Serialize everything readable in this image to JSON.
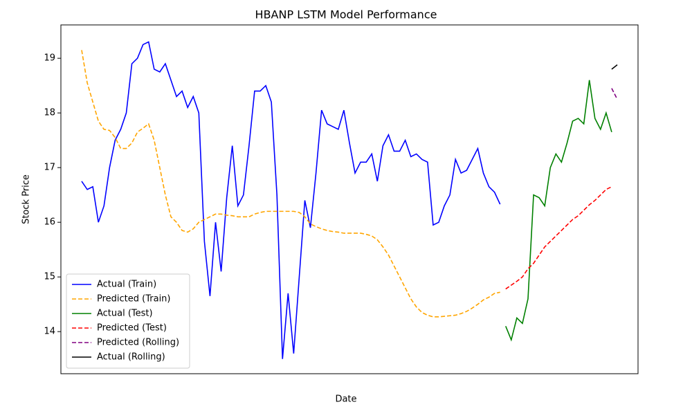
{
  "chart_data": {
    "type": "line",
    "title": "HBANP LSTM Model Performance",
    "x_label": "Date",
    "y_label": "Stock Price",
    "categories": [
      null,
      null,
      null,
      null,
      null,
      null,
      null,
      null,
      null,
      null,
      null,
      null,
      null,
      null,
      null,
      null,
      null,
      null,
      null,
      null,
      null,
      null,
      null,
      null,
      null,
      null,
      null,
      null,
      null,
      null,
      null,
      null,
      null,
      null,
      null,
      null,
      null,
      null,
      null,
      null,
      null,
      null,
      null,
      null,
      null,
      null,
      null,
      null,
      null,
      null,
      null,
      null,
      null,
      null,
      null,
      null,
      null,
      null,
      null,
      null,
      null,
      null,
      null,
      null,
      null,
      null,
      null,
      null,
      null,
      null,
      null,
      null,
      null,
      null,
      null,
      null,
      null,
      null,
      null,
      null,
      null,
      null,
      null,
      null,
      null,
      null,
      null,
      null,
      null,
      null,
      null,
      null,
      null,
      null,
      null,
      null,
      null
    ],
    "series": [
      {
        "name": "Actual (Train)",
        "color": "#0000ff",
        "linestyle": "solid",
        "values": [
          16.75,
          16.6,
          16.65,
          16.0,
          16.3,
          17.0,
          17.5,
          17.7,
          18.0,
          18.9,
          19.0,
          19.25,
          19.3,
          18.8,
          18.75,
          18.9,
          18.6,
          18.3,
          18.4,
          18.1,
          18.3,
          18.0,
          15.65,
          14.65,
          16.0,
          15.1,
          16.45,
          17.4,
          16.3,
          16.5,
          17.4,
          18.4,
          18.4,
          18.5,
          18.2,
          16.5,
          13.5,
          14.7,
          13.6,
          15.0,
          16.4,
          15.9,
          16.9,
          18.05,
          17.8,
          17.75,
          17.7,
          18.05,
          17.45,
          16.9,
          17.1,
          17.1,
          17.25,
          16.75,
          17.4,
          17.6,
          17.3,
          17.3,
          17.5,
          17.2,
          17.25,
          17.15,
          17.1,
          15.95,
          16.0,
          16.3,
          16.5,
          17.15,
          16.9,
          16.95,
          17.15,
          17.35,
          16.9,
          16.65,
          16.55,
          16.33,
          null,
          null,
          null,
          null,
          null,
          null,
          null,
          null,
          null,
          null,
          null,
          null,
          null,
          null,
          null,
          null,
          null,
          null,
          null,
          null,
          null
        ]
      },
      {
        "name": "Predicted (Train)",
        "color": "#ffa500",
        "linestyle": "dashed",
        "values": [
          19.15,
          18.55,
          18.2,
          17.85,
          17.7,
          17.68,
          17.55,
          17.35,
          17.35,
          17.45,
          17.65,
          17.72,
          17.8,
          17.5,
          17.0,
          16.5,
          16.1,
          16.0,
          15.85,
          15.82,
          15.88,
          16.0,
          16.05,
          16.1,
          16.15,
          16.15,
          16.13,
          16.12,
          16.1,
          16.1,
          16.1,
          16.15,
          16.18,
          16.2,
          16.2,
          16.2,
          16.2,
          16.2,
          16.2,
          16.18,
          16.1,
          15.97,
          15.92,
          15.88,
          15.85,
          15.83,
          15.82,
          15.8,
          15.8,
          15.8,
          15.8,
          15.78,
          15.75,
          15.68,
          15.55,
          15.4,
          15.2,
          15.0,
          14.8,
          14.6,
          14.45,
          14.35,
          14.3,
          14.27,
          14.27,
          14.28,
          14.29,
          14.3,
          14.33,
          14.37,
          14.43,
          14.5,
          14.58,
          14.63,
          14.7,
          14.72,
          null,
          null,
          null,
          null,
          null,
          null,
          null,
          null,
          null,
          null,
          null,
          null,
          null,
          null,
          null,
          null,
          null,
          null,
          null,
          null,
          null
        ]
      },
      {
        "name": "Actual (Test)",
        "color": "#008000",
        "linestyle": "solid",
        "values": [
          null,
          null,
          null,
          null,
          null,
          null,
          null,
          null,
          null,
          null,
          null,
          null,
          null,
          null,
          null,
          null,
          null,
          null,
          null,
          null,
          null,
          null,
          null,
          null,
          null,
          null,
          null,
          null,
          null,
          null,
          null,
          null,
          null,
          null,
          null,
          null,
          null,
          null,
          null,
          null,
          null,
          null,
          null,
          null,
          null,
          null,
          null,
          null,
          null,
          null,
          null,
          null,
          null,
          null,
          null,
          null,
          null,
          null,
          null,
          null,
          null,
          null,
          null,
          null,
          null,
          null,
          null,
          null,
          null,
          null,
          null,
          null,
          null,
          null,
          null,
          null,
          14.1,
          13.85,
          14.25,
          14.15,
          14.6,
          16.5,
          16.45,
          16.3,
          17.0,
          17.25,
          17.1,
          17.45,
          17.85,
          17.9,
          17.8,
          18.6,
          17.9,
          17.7,
          18.0,
          17.65,
          null
        ]
      },
      {
        "name": "Predicted (Test)",
        "color": "#ff0000",
        "linestyle": "dashed",
        "values": [
          null,
          null,
          null,
          null,
          null,
          null,
          null,
          null,
          null,
          null,
          null,
          null,
          null,
          null,
          null,
          null,
          null,
          null,
          null,
          null,
          null,
          null,
          null,
          null,
          null,
          null,
          null,
          null,
          null,
          null,
          null,
          null,
          null,
          null,
          null,
          null,
          null,
          null,
          null,
          null,
          null,
          null,
          null,
          null,
          null,
          null,
          null,
          null,
          null,
          null,
          null,
          null,
          null,
          null,
          null,
          null,
          null,
          null,
          null,
          null,
          null,
          null,
          null,
          null,
          null,
          null,
          null,
          null,
          null,
          null,
          null,
          null,
          null,
          null,
          null,
          null,
          14.78,
          14.85,
          14.92,
          15.0,
          15.15,
          15.25,
          15.4,
          15.55,
          15.65,
          15.75,
          15.85,
          15.95,
          16.05,
          16.12,
          16.22,
          16.32,
          16.4,
          16.5,
          16.6,
          16.65,
          null
        ]
      },
      {
        "name": "Predicted (Rolling)",
        "color": "#800080",
        "linestyle": "dashed",
        "values": [
          null,
          null,
          null,
          null,
          null,
          null,
          null,
          null,
          null,
          null,
          null,
          null,
          null,
          null,
          null,
          null,
          null,
          null,
          null,
          null,
          null,
          null,
          null,
          null,
          null,
          null,
          null,
          null,
          null,
          null,
          null,
          null,
          null,
          null,
          null,
          null,
          null,
          null,
          null,
          null,
          null,
          null,
          null,
          null,
          null,
          null,
          null,
          null,
          null,
          null,
          null,
          null,
          null,
          null,
          null,
          null,
          null,
          null,
          null,
          null,
          null,
          null,
          null,
          null,
          null,
          null,
          null,
          null,
          null,
          null,
          null,
          null,
          null,
          null,
          null,
          null,
          null,
          null,
          null,
          null,
          null,
          null,
          null,
          null,
          null,
          null,
          null,
          null,
          null,
          null,
          null,
          null,
          null,
          null,
          null,
          18.45,
          18.25
        ]
      },
      {
        "name": "Actual (Rolling)",
        "color": "#000000",
        "linestyle": "solid",
        "values": [
          null,
          null,
          null,
          null,
          null,
          null,
          null,
          null,
          null,
          null,
          null,
          null,
          null,
          null,
          null,
          null,
          null,
          null,
          null,
          null,
          null,
          null,
          null,
          null,
          null,
          null,
          null,
          null,
          null,
          null,
          null,
          null,
          null,
          null,
          null,
          null,
          null,
          null,
          null,
          null,
          null,
          null,
          null,
          null,
          null,
          null,
          null,
          null,
          null,
          null,
          null,
          null,
          null,
          null,
          null,
          null,
          null,
          null,
          null,
          null,
          null,
          null,
          null,
          null,
          null,
          null,
          null,
          null,
          null,
          null,
          null,
          null,
          null,
          null,
          null,
          null,
          null,
          null,
          null,
          null,
          null,
          null,
          null,
          null,
          null,
          null,
          null,
          null,
          null,
          null,
          null,
          null,
          null,
          null,
          null,
          18.8,
          18.88
        ]
      }
    ],
    "ylim": [
      13.23,
      19.61
    ],
    "yticks": [
      14,
      15,
      16,
      17,
      18,
      19
    ],
    "grid": false,
    "legend": "lower left"
  }
}
